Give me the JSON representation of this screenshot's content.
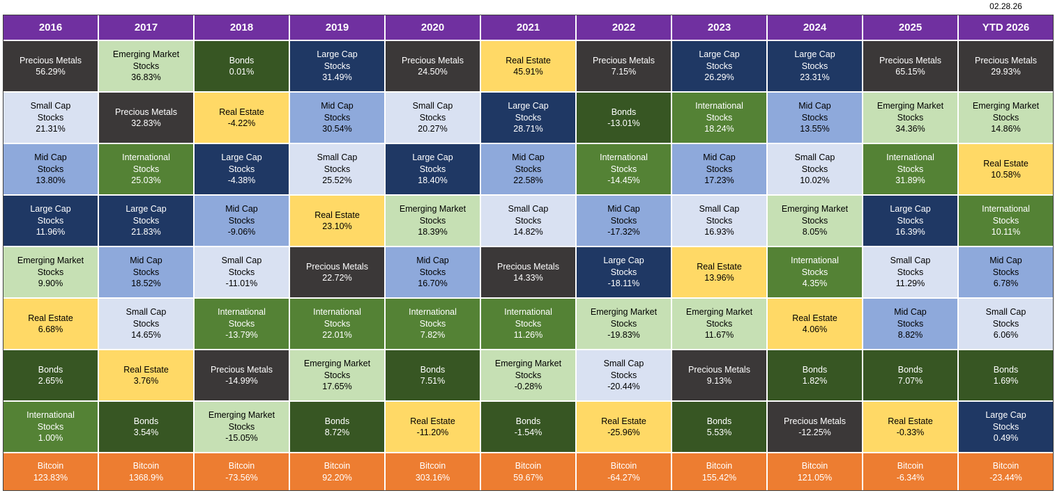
{
  "date_label": "02.28.26",
  "header_bg": "#7030A0",
  "header_text_color": "#FFFFFF",
  "table_border_color": "#3F3F3F",
  "chart_data": {
    "type": "table",
    "columns": [
      "2016",
      "2017",
      "2018",
      "2019",
      "2020",
      "2021",
      "2022",
      "2023",
      "2024",
      "2025",
      "YTD 2026"
    ],
    "asset_classes": {
      "precious-metals": {
        "label": "Precious Metals",
        "color": "#3B3838",
        "text_color": "#FFFFFF"
      },
      "emerging-market-stocks": {
        "label": "Emerging Market\nStocks",
        "color": "#C6E0B4",
        "text_color": "#000000"
      },
      "bonds": {
        "label": "Bonds",
        "color": "#375623",
        "text_color": "#FFFFFF"
      },
      "large-cap-stocks": {
        "label": "Large Cap\nStocks",
        "color": "#1F3864",
        "text_color": "#FFFFFF"
      },
      "small-cap-stocks": {
        "label": "Small Cap\nStocks",
        "color": "#D9E1F2",
        "text_color": "#000000"
      },
      "mid-cap-stocks": {
        "label": "Mid Cap\nStocks",
        "color": "#8EA9DB",
        "text_color": "#000000"
      },
      "real-estate": {
        "label": "Real Estate",
        "color": "#FFD966",
        "text_color": "#000000"
      },
      "international-stocks": {
        "label": "International\nStocks",
        "color": "#548235",
        "text_color": "#FFFFFF"
      },
      "bitcoin": {
        "label": "Bitcoin",
        "color": "#ED7D31",
        "text_color": "#FFFFFF"
      }
    },
    "rankings": [
      {
        "year": "2016",
        "cells": [
          {
            "asset": "precious-metals",
            "value": "56.29%"
          },
          {
            "asset": "small-cap-stocks",
            "value": "21.31%"
          },
          {
            "asset": "mid-cap-stocks",
            "value": "13.80%"
          },
          {
            "asset": "large-cap-stocks",
            "value": "11.96%"
          },
          {
            "asset": "emerging-market-stocks",
            "value": "9.90%"
          },
          {
            "asset": "real-estate",
            "value": "6.68%"
          },
          {
            "asset": "bonds",
            "value": "2.65%"
          },
          {
            "asset": "international-stocks",
            "value": "1.00%"
          },
          {
            "asset": "bitcoin",
            "value": "123.83%"
          }
        ]
      },
      {
        "year": "2017",
        "cells": [
          {
            "asset": "emerging-market-stocks",
            "value": "36.83%"
          },
          {
            "asset": "precious-metals",
            "value": "32.83%"
          },
          {
            "asset": "international-stocks",
            "value": "25.03%"
          },
          {
            "asset": "large-cap-stocks",
            "value": "21.83%"
          },
          {
            "asset": "mid-cap-stocks",
            "value": "18.52%"
          },
          {
            "asset": "small-cap-stocks",
            "value": "14.65%"
          },
          {
            "asset": "real-estate",
            "value": "3.76%"
          },
          {
            "asset": "bonds",
            "value": "3.54%"
          },
          {
            "asset": "bitcoin",
            "value": "1368.9%"
          }
        ]
      },
      {
        "year": "2018",
        "cells": [
          {
            "asset": "bonds",
            "value": "0.01%"
          },
          {
            "asset": "real-estate",
            "value": "-4.22%"
          },
          {
            "asset": "large-cap-stocks",
            "value": "-4.38%"
          },
          {
            "asset": "mid-cap-stocks",
            "value": "-9.06%"
          },
          {
            "asset": "small-cap-stocks",
            "value": "-11.01%"
          },
          {
            "asset": "international-stocks",
            "value": "-13.79%"
          },
          {
            "asset": "precious-metals",
            "value": "-14.99%"
          },
          {
            "asset": "emerging-market-stocks",
            "value": "-15.05%"
          },
          {
            "asset": "bitcoin",
            "value": "-73.56%"
          }
        ]
      },
      {
        "year": "2019",
        "cells": [
          {
            "asset": "large-cap-stocks",
            "value": "31.49%"
          },
          {
            "asset": "mid-cap-stocks",
            "value": "30.54%"
          },
          {
            "asset": "small-cap-stocks",
            "value": "25.52%"
          },
          {
            "asset": "real-estate",
            "value": "23.10%"
          },
          {
            "asset": "precious-metals",
            "value": "22.72%"
          },
          {
            "asset": "international-stocks",
            "value": "22.01%"
          },
          {
            "asset": "emerging-market-stocks",
            "value": "17.65%"
          },
          {
            "asset": "bonds",
            "value": "8.72%"
          },
          {
            "asset": "bitcoin",
            "value": "92.20%"
          }
        ]
      },
      {
        "year": "2020",
        "cells": [
          {
            "asset": "precious-metals",
            "value": "24.50%"
          },
          {
            "asset": "small-cap-stocks",
            "value": "20.27%"
          },
          {
            "asset": "large-cap-stocks",
            "value": "18.40%"
          },
          {
            "asset": "emerging-market-stocks",
            "value": "18.39%"
          },
          {
            "asset": "mid-cap-stocks",
            "value": "16.70%"
          },
          {
            "asset": "international-stocks",
            "value": "7.82%"
          },
          {
            "asset": "bonds",
            "value": "7.51%"
          },
          {
            "asset": "real-estate",
            "value": "-11.20%"
          },
          {
            "asset": "bitcoin",
            "value": "303.16%"
          }
        ]
      },
      {
        "year": "2021",
        "cells": [
          {
            "asset": "real-estate",
            "value": "45.91%"
          },
          {
            "asset": "large-cap-stocks",
            "value": "28.71%"
          },
          {
            "asset": "mid-cap-stocks",
            "value": "22.58%"
          },
          {
            "asset": "small-cap-stocks",
            "value": "14.82%"
          },
          {
            "asset": "precious-metals",
            "value": "14.33%"
          },
          {
            "asset": "international-stocks",
            "value": "11.26%"
          },
          {
            "asset": "emerging-market-stocks",
            "value": "-0.28%"
          },
          {
            "asset": "bonds",
            "value": "-1.54%"
          },
          {
            "asset": "bitcoin",
            "value": "59.67%"
          }
        ]
      },
      {
        "year": "2022",
        "cells": [
          {
            "asset": "precious-metals",
            "value": "7.15%"
          },
          {
            "asset": "bonds",
            "value": "-13.01%"
          },
          {
            "asset": "international-stocks",
            "value": "-14.45%"
          },
          {
            "asset": "mid-cap-stocks",
            "value": "-17.32%"
          },
          {
            "asset": "large-cap-stocks",
            "value": "-18.11%"
          },
          {
            "asset": "emerging-market-stocks",
            "value": "-19.83%"
          },
          {
            "asset": "small-cap-stocks",
            "value": "-20.44%"
          },
          {
            "asset": "real-estate",
            "value": "-25.96%"
          },
          {
            "asset": "bitcoin",
            "value": "-64.27%"
          }
        ]
      },
      {
        "year": "2023",
        "cells": [
          {
            "asset": "large-cap-stocks",
            "value": "26.29%"
          },
          {
            "asset": "international-stocks",
            "value": "18.24%"
          },
          {
            "asset": "mid-cap-stocks",
            "value": "17.23%"
          },
          {
            "asset": "small-cap-stocks",
            "value": "16.93%"
          },
          {
            "asset": "real-estate",
            "value": "13.96%"
          },
          {
            "asset": "emerging-market-stocks",
            "value": "11.67%"
          },
          {
            "asset": "precious-metals",
            "value": "9.13%"
          },
          {
            "asset": "bonds",
            "value": "5.53%"
          },
          {
            "asset": "bitcoin",
            "value": "155.42%"
          }
        ]
      },
      {
        "year": "2024",
        "cells": [
          {
            "asset": "large-cap-stocks",
            "value": "23.31%"
          },
          {
            "asset": "mid-cap-stocks",
            "value": "13.55%"
          },
          {
            "asset": "small-cap-stocks",
            "value": "10.02%"
          },
          {
            "asset": "emerging-market-stocks",
            "value": "8.05%"
          },
          {
            "asset": "international-stocks",
            "value": "4.35%"
          },
          {
            "asset": "real-estate",
            "value": "4.06%"
          },
          {
            "asset": "bonds",
            "value": "1.82%"
          },
          {
            "asset": "precious-metals",
            "value": "-12.25%"
          },
          {
            "asset": "bitcoin",
            "value": "121.05%"
          }
        ]
      },
      {
        "year": "2025",
        "cells": [
          {
            "asset": "precious-metals",
            "value": "65.15%"
          },
          {
            "asset": "emerging-market-stocks",
            "value": "34.36%"
          },
          {
            "asset": "international-stocks",
            "value": "31.89%"
          },
          {
            "asset": "large-cap-stocks",
            "value": "16.39%"
          },
          {
            "asset": "small-cap-stocks",
            "value": "11.29%"
          },
          {
            "asset": "mid-cap-stocks",
            "value": "8.82%"
          },
          {
            "asset": "bonds",
            "value": "7.07%"
          },
          {
            "asset": "real-estate",
            "value": "-0.33%"
          },
          {
            "asset": "bitcoin",
            "value": "-6.34%"
          }
        ]
      },
      {
        "year": "YTD 2026",
        "cells": [
          {
            "asset": "precious-metals",
            "value": "29.93%"
          },
          {
            "asset": "emerging-market-stocks",
            "value": "14.86%"
          },
          {
            "asset": "real-estate",
            "value": "10.58%"
          },
          {
            "asset": "international-stocks",
            "value": "10.11%"
          },
          {
            "asset": "mid-cap-stocks",
            "value": "6.78%"
          },
          {
            "asset": "small-cap-stocks",
            "value": "6.06%"
          },
          {
            "asset": "bonds",
            "value": "1.69%"
          },
          {
            "asset": "large-cap-stocks",
            "value": "0.49%"
          },
          {
            "asset": "bitcoin",
            "value": "-23.44%"
          }
        ]
      }
    ]
  }
}
